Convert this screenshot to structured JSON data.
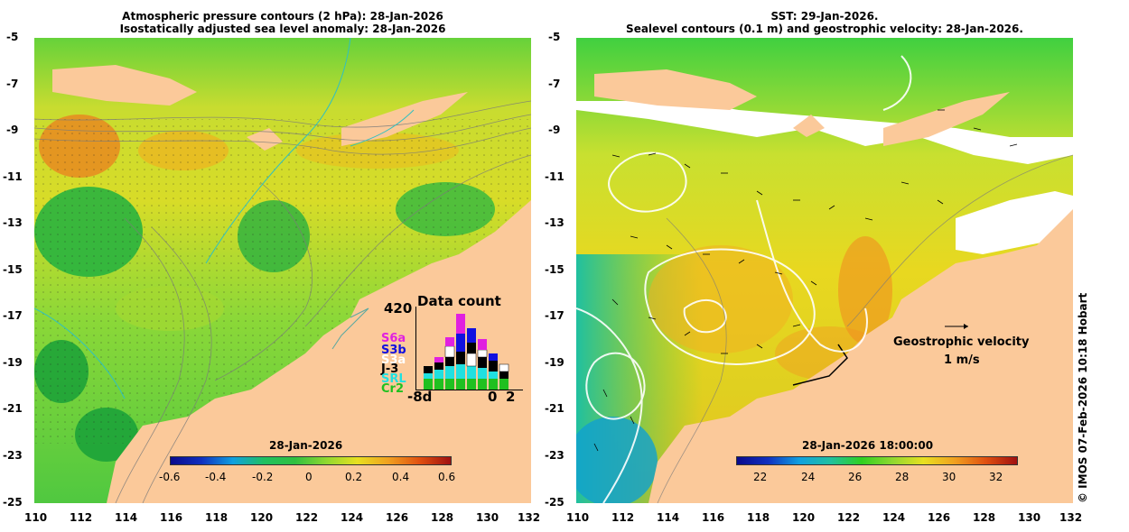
{
  "left_panel": {
    "title_line1": "Atmospheric pressure contours (2 hPa): 28-Jan-2026",
    "title_line2": "Isostatically adjusted sea level anomaly: 28-Jan-2026",
    "y_ticks": [
      "-5",
      "-7",
      "-9",
      "-11",
      "-13",
      "-15",
      "-17",
      "-19",
      "-21",
      "-23",
      "-25"
    ],
    "x_ticks": [
      "110",
      "112",
      "114",
      "116",
      "118",
      "120",
      "122",
      "124",
      "126",
      "128",
      "130",
      "132"
    ],
    "colorbar": {
      "label": "28-Jan-2026",
      "ticks": [
        "-0.6",
        "-0.4",
        "-0.2",
        "0",
        "0.2",
        "0.4",
        "0.6"
      ]
    },
    "data_count": {
      "title": "Data count",
      "max": "420",
      "missions": [
        {
          "name": "S6a",
          "color": "#e020e0"
        },
        {
          "name": "S3b",
          "color": "#1010e0"
        },
        {
          "name": "S3a",
          "color": "#ffffff"
        },
        {
          "name": "J-3",
          "color": "#000000"
        },
        {
          "name": "SRL",
          "color": "#20e0e0"
        },
        {
          "name": "Cr2",
          "color": "#20c020"
        }
      ],
      "x_start": "-8d",
      "x_zero": "0",
      "x_end": "2"
    }
  },
  "right_panel": {
    "title_line1": "SST: 29-Jan-2026.",
    "title_line2": "Sealevel contours (0.1 m) and geostrophic velocity: 28-Jan-2026.",
    "y_ticks": [
      "-5",
      "-7",
      "-9",
      "-11",
      "-13",
      "-15",
      "-17",
      "-19",
      "-21",
      "-23",
      "-25"
    ],
    "x_ticks": [
      "110",
      "112",
      "114",
      "116",
      "118",
      "120",
      "122",
      "124",
      "126",
      "128",
      "130",
      "132"
    ],
    "colorbar": {
      "label": "28-Jan-2026 18:00:00",
      "ticks": [
        "22",
        "24",
        "26",
        "28",
        "30",
        "32"
      ]
    },
    "velocity_legend": {
      "title": "Geostrophic velocity",
      "scale": "1 m/s"
    }
  },
  "credit": "© IMOS 07-Feb-2026 10:18 Hobart",
  "colors": {
    "land": "#fbc99a",
    "anomaly_low": "#0a0a8c",
    "anomaly_zero": "#20c040",
    "anomaly_high": "#a01010",
    "sst_low": "#0a0a8c",
    "sst_mid": "#30d020",
    "sst_high": "#a01010"
  }
}
